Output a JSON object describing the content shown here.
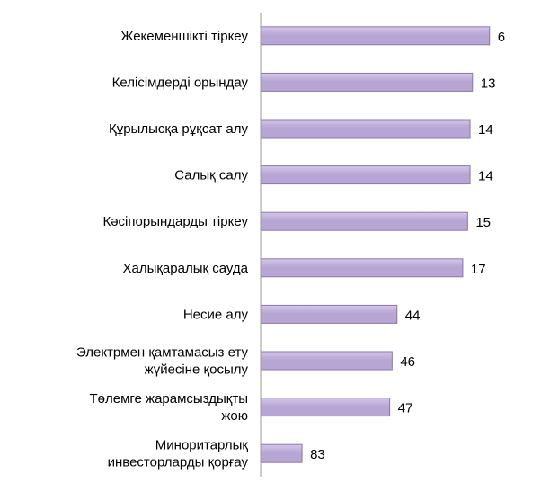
{
  "chart_data": {
    "type": "bar",
    "orientation": "horizontal",
    "categories": [
      [
        "Жекеменшікті тіркеу"
      ],
      [
        "Келісімдерді орындау"
      ],
      [
        "Құрылысқа рұқсат алу"
      ],
      [
        "Салық салу"
      ],
      [
        "Кәсіпорындарды тіркеу"
      ],
      [
        "Халықаралық сауда"
      ],
      [
        "Несие алу"
      ],
      [
        "Электрмен қамтамасыз ету",
        "жүйесіне қосылу"
      ],
      [
        "Төлемге жарамсыздықты",
        "жою"
      ],
      [
        "Миноритарлық",
        "инвесторларды қорғау"
      ]
    ],
    "values": [
      6,
      13,
      14,
      14,
      15,
      17,
      44,
      46,
      47,
      83
    ],
    "axis_direction": "reversed",
    "title": "",
    "xlabel": "",
    "ylabel": "",
    "grid": false,
    "legend": "none",
    "colors": {
      "bar_fill": "#b7a6d4",
      "bar_fill_light": "#d4c8e8",
      "bar_stroke": "#8a76b0",
      "axis": "#9a9a9a"
    }
  }
}
